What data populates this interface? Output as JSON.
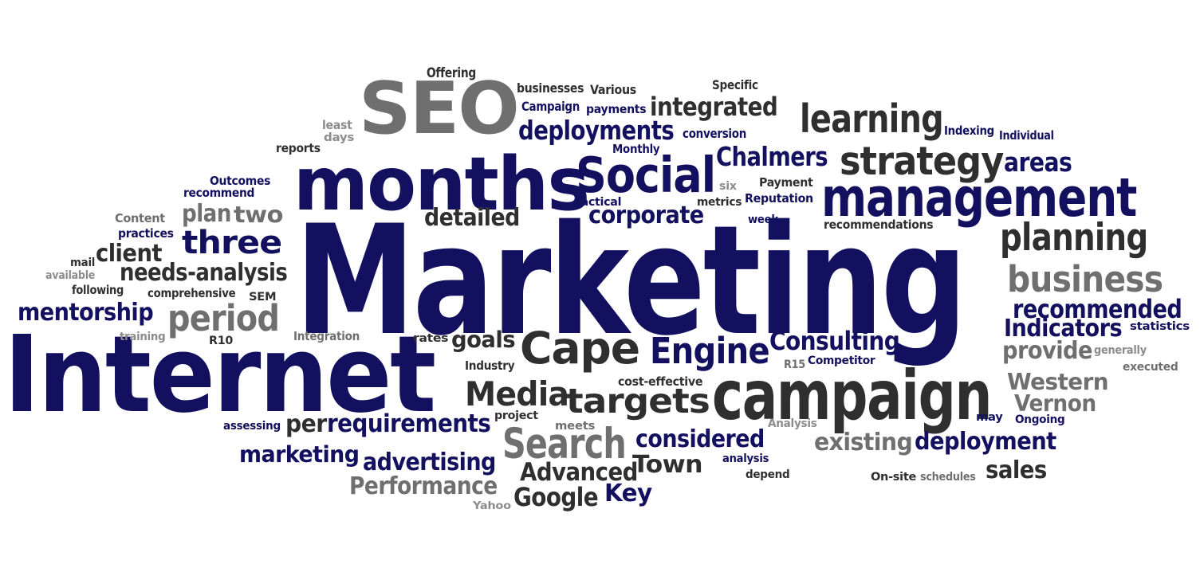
{
  "colors": {
    "navy": "#131060",
    "dark": "#2f2f2f",
    "gray": "#6f6f6f",
    "light": "#8c8c8c"
  },
  "words": [
    {
      "text": "Marketing",
      "color": "navy"
    },
    {
      "text": "Internet",
      "color": "navy"
    },
    {
      "text": "SEO",
      "color": "gray"
    },
    {
      "text": "months",
      "color": "navy"
    },
    {
      "text": "campaign",
      "color": "dark"
    },
    {
      "text": "management",
      "color": "navy"
    },
    {
      "text": "Social",
      "color": "navy"
    },
    {
      "text": "learning",
      "color": "dark"
    },
    {
      "text": "strategy",
      "color": "dark"
    },
    {
      "text": "planning",
      "color": "dark"
    },
    {
      "text": "business",
      "color": "gray"
    },
    {
      "text": "Cape",
      "color": "dark"
    },
    {
      "text": "Engine",
      "color": "navy"
    },
    {
      "text": "period",
      "color": "gray"
    },
    {
      "text": "Search",
      "color": "gray"
    },
    {
      "text": "targets",
      "color": "dark"
    },
    {
      "text": "Media",
      "color": "dark"
    },
    {
      "text": "three",
      "color": "navy"
    },
    {
      "text": "integrated",
      "color": "dark"
    },
    {
      "text": "deployments",
      "color": "navy"
    },
    {
      "text": "Chalmers",
      "color": "navy"
    },
    {
      "text": "areas",
      "color": "navy"
    },
    {
      "text": "corporate",
      "color": "navy"
    },
    {
      "text": "detailed",
      "color": "dark"
    },
    {
      "text": "plan",
      "color": "gray"
    },
    {
      "text": "two",
      "color": "gray"
    },
    {
      "text": "client",
      "color": "dark"
    },
    {
      "text": "needs-analysis",
      "color": "dark"
    },
    {
      "text": "mentorship",
      "color": "navy"
    },
    {
      "text": "Consulting",
      "color": "navy"
    },
    {
      "text": "recommended",
      "color": "navy"
    },
    {
      "text": "Indicators",
      "color": "navy"
    },
    {
      "text": "provide",
      "color": "gray"
    },
    {
      "text": "Western",
      "color": "gray"
    },
    {
      "text": "Vernon",
      "color": "gray"
    },
    {
      "text": "goals",
      "color": "dark"
    },
    {
      "text": "requirements",
      "color": "navy"
    },
    {
      "text": "per",
      "color": "dark"
    },
    {
      "text": "marketing",
      "color": "navy"
    },
    {
      "text": "advertising",
      "color": "navy"
    },
    {
      "text": "considered",
      "color": "navy"
    },
    {
      "text": "existing",
      "color": "gray"
    },
    {
      "text": "deployment",
      "color": "navy"
    },
    {
      "text": "Advanced",
      "color": "dark"
    },
    {
      "text": "Town",
      "color": "dark"
    },
    {
      "text": "sales",
      "color": "dark"
    },
    {
      "text": "Performance",
      "color": "gray"
    },
    {
      "text": "Google",
      "color": "dark"
    },
    {
      "text": "Key",
      "color": "navy"
    },
    {
      "text": "Offering",
      "color": "dark"
    },
    {
      "text": "businesses",
      "color": "dark"
    },
    {
      "text": "Various",
      "color": "dark"
    },
    {
      "text": "Specific",
      "color": "dark"
    },
    {
      "text": "Campaign",
      "color": "navy"
    },
    {
      "text": "payments",
      "color": "navy"
    },
    {
      "text": "least",
      "color": "light"
    },
    {
      "text": "days",
      "color": "light"
    },
    {
      "text": "reports",
      "color": "dark"
    },
    {
      "text": "conversion",
      "color": "navy"
    },
    {
      "text": "Indexing",
      "color": "navy"
    },
    {
      "text": "Individual",
      "color": "navy"
    },
    {
      "text": "Monthly",
      "color": "navy"
    },
    {
      "text": "Outcomes",
      "color": "navy"
    },
    {
      "text": "recommend",
      "color": "navy"
    },
    {
      "text": "Payment",
      "color": "dark"
    },
    {
      "text": "six",
      "color": "light"
    },
    {
      "text": "Reputation",
      "color": "navy"
    },
    {
      "text": "tactical",
      "color": "navy"
    },
    {
      "text": "metrics",
      "color": "dark"
    },
    {
      "text": "week",
      "color": "navy"
    },
    {
      "text": "recommendations",
      "color": "dark"
    },
    {
      "text": "Content",
      "color": "gray"
    },
    {
      "text": "practices",
      "color": "navy"
    },
    {
      "text": "mail",
      "color": "dark"
    },
    {
      "text": "available",
      "color": "light"
    },
    {
      "text": "following",
      "color": "dark"
    },
    {
      "text": "comprehensive",
      "color": "dark"
    },
    {
      "text": "SEM",
      "color": "dark"
    },
    {
      "text": "statistics",
      "color": "navy"
    },
    {
      "text": "training",
      "color": "light"
    },
    {
      "text": "Integration",
      "color": "gray"
    },
    {
      "text": "R10",
      "color": "dark"
    },
    {
      "text": "rates",
      "color": "dark"
    },
    {
      "text": "generally",
      "color": "light"
    },
    {
      "text": "executed",
      "color": "gray"
    },
    {
      "text": "R15",
      "color": "gray"
    },
    {
      "text": "Competitor",
      "color": "navy"
    },
    {
      "text": "Industry",
      "color": "dark"
    },
    {
      "text": "cost-effective",
      "color": "dark"
    },
    {
      "text": "project",
      "color": "dark"
    },
    {
      "text": "meets",
      "color": "gray"
    },
    {
      "text": "Analysis",
      "color": "light"
    },
    {
      "text": "may",
      "color": "navy"
    },
    {
      "text": "Ongoing",
      "color": "navy"
    },
    {
      "text": "assessing",
      "color": "navy"
    },
    {
      "text": "analysis",
      "color": "navy"
    },
    {
      "text": "depend",
      "color": "dark"
    },
    {
      "text": "On-site",
      "color": "dark"
    },
    {
      "text": "schedules",
      "color": "gray"
    },
    {
      "text": "Yahoo",
      "color": "light"
    }
  ]
}
